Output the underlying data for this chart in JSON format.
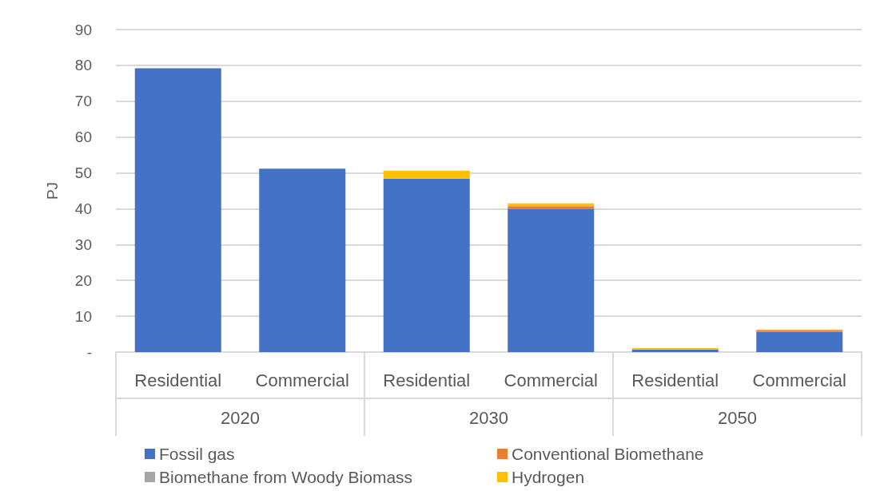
{
  "chart_data": {
    "type": "bar",
    "stacked": true,
    "ylabel": "PJ",
    "categories": [
      "Residential",
      "Commercial",
      "Residential",
      "Commercial",
      "Residential",
      "Commercial"
    ],
    "annotations": [
      "2020",
      "2030",
      "2050"
    ],
    "series": [
      {
        "name": "Fossil gas",
        "color": "#4472c4",
        "values": [
          79.2,
          51.2,
          48.4,
          39.9,
          0.7,
          5.7
        ]
      },
      {
        "name": "Conventional Biomethane",
        "color": "#ed7d31",
        "values": [
          0,
          0,
          0,
          0.8,
          0.1,
          0.3
        ]
      },
      {
        "name": "Biomethane from Woody Biomass",
        "color": "#a5a5a5",
        "values": [
          0,
          0,
          0,
          0,
          0,
          0
        ]
      },
      {
        "name": "Hydrogen",
        "color": "#ffc000",
        "values": [
          0,
          0,
          2.2,
          0.8,
          0.3,
          0.3
        ]
      }
    ],
    "ylim": [
      0,
      90
    ],
    "yticks": [
      {
        "value": 0,
        "label": "-"
      },
      10,
      20,
      30,
      40,
      50,
      60,
      70,
      80,
      90
    ],
    "grid": "y",
    "legend": "bottom"
  }
}
